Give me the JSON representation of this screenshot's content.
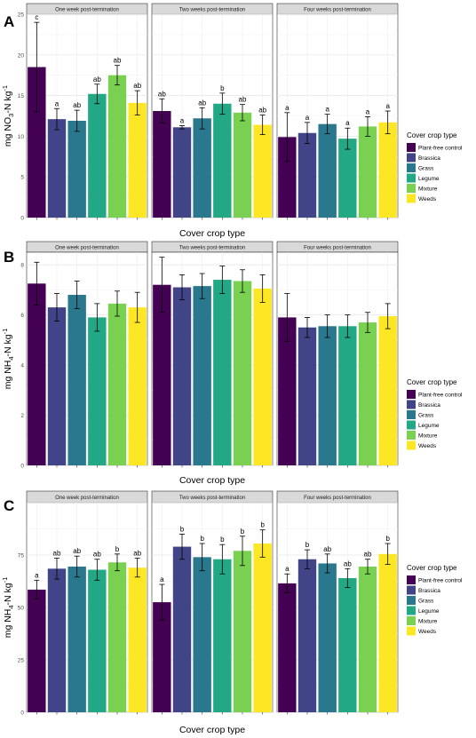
{
  "legend": {
    "title": "Cover crop type",
    "items": [
      {
        "label": "Plant-free control",
        "color": "#440154"
      },
      {
        "label": "Brassica",
        "color": "#414487"
      },
      {
        "label": "Grass",
        "color": "#2A788E"
      },
      {
        "label": "Legume",
        "color": "#22A884"
      },
      {
        "label": "Mixture",
        "color": "#7AD151"
      },
      {
        "label": "Weeds",
        "color": "#FDE725"
      }
    ]
  },
  "chart_data": [
    {
      "type": "bar",
      "panel_letter": "A",
      "ylabel_parts": [
        "mg NO",
        "3",
        "-N kg",
        "-1"
      ],
      "xlabel": "Cover crop type",
      "ylim": [
        0,
        25
      ],
      "yticks": [
        "0",
        "5",
        "10",
        "15",
        "20",
        "25"
      ],
      "grid": true,
      "legend_position": "right",
      "facets": [
        {
          "title": "One week post-termination",
          "values": [
            18.5,
            12.1,
            11.9,
            15.2,
            17.5,
            14.1
          ],
          "errors": [
            5.5,
            1.3,
            1.3,
            1.2,
            1.2,
            1.5
          ],
          "letters": [
            "c",
            "a",
            "ab",
            "ab",
            "ab",
            "ab"
          ]
        },
        {
          "title": "Two weeks post-termination",
          "values": [
            13.1,
            11.1,
            12.2,
            14.0,
            12.9,
            11.4
          ],
          "errors": [
            1.5,
            0.2,
            1.3,
            1.3,
            1.0,
            1.2
          ],
          "letters": [
            "ab",
            "a",
            "ab",
            "b",
            "ab",
            "ab"
          ]
        },
        {
          "title": "Four weeks post-termination",
          "values": [
            9.9,
            10.4,
            11.5,
            9.7,
            11.2,
            11.7
          ],
          "errors": [
            3.0,
            1.3,
            1.2,
            1.3,
            1.2,
            1.4
          ],
          "letters": [
            "a",
            "a",
            "a",
            "a",
            "a",
            "a"
          ]
        }
      ]
    },
    {
      "type": "bar",
      "panel_letter": "B",
      "ylabel_parts": [
        "mg NH",
        "4",
        "-N kg",
        "-1"
      ],
      "xlabel": "Cover crop type",
      "ylim": [
        0,
        8.5
      ],
      "yticks": [
        "0",
        "2",
        "4",
        "6",
        "8"
      ],
      "grid": true,
      "legend_position": "right",
      "facets": [
        {
          "title": "One week post-termination",
          "values": [
            7.25,
            6.3,
            6.8,
            5.9,
            6.45,
            6.3
          ],
          "errors": [
            0.85,
            0.55,
            0.55,
            0.55,
            0.5,
            0.6
          ],
          "letters": []
        },
        {
          "title": "Two weeks post-termination",
          "values": [
            7.2,
            7.1,
            7.15,
            7.4,
            7.35,
            7.05
          ],
          "errors": [
            1.1,
            0.5,
            0.5,
            0.55,
            0.45,
            0.55
          ],
          "letters": []
        },
        {
          "title": "Four weeks post-termination",
          "values": [
            5.9,
            5.5,
            5.55,
            5.55,
            5.7,
            5.95
          ],
          "errors": [
            0.95,
            0.4,
            0.45,
            0.45,
            0.4,
            0.5
          ],
          "letters": []
        }
      ]
    },
    {
      "type": "bar",
      "panel_letter": "C",
      "ylabel_parts": [
        "mg NH",
        "4",
        "-N kg",
        "-1"
      ],
      "xlabel": "Cover crop type",
      "ylim": [
        0,
        100
      ],
      "yticks": [
        "0",
        "25",
        "50",
        "75"
      ],
      "grid": true,
      "legend_position": "right",
      "facets": [
        {
          "title": "One week post-termination",
          "values": [
            58.5,
            68.5,
            69.5,
            68.0,
            71.5,
            69.0
          ],
          "errors": [
            4.5,
            5.0,
            5.0,
            5.0,
            4.0,
            4.5
          ],
          "letters": [
            "a",
            "ab",
            "ab",
            "ab",
            "b",
            "ab"
          ]
        },
        {
          "title": "Two weeks post-termination",
          "values": [
            52.5,
            79.0,
            74.0,
            73.0,
            77.0,
            80.5
          ],
          "errors": [
            8.5,
            6.0,
            6.5,
            7.0,
            7.0,
            6.5
          ],
          "letters": [
            "a",
            "b",
            "b",
            "b",
            "b",
            "b"
          ]
        },
        {
          "title": "Four weeks post-termination",
          "values": [
            61.5,
            73.0,
            71.0,
            64.0,
            69.5,
            75.5
          ],
          "errors": [
            4.5,
            4.5,
            4.5,
            4.5,
            3.5,
            5.0
          ],
          "letters": [
            "a",
            "b",
            "ab",
            "ab",
            "ab",
            "b"
          ]
        }
      ]
    }
  ]
}
